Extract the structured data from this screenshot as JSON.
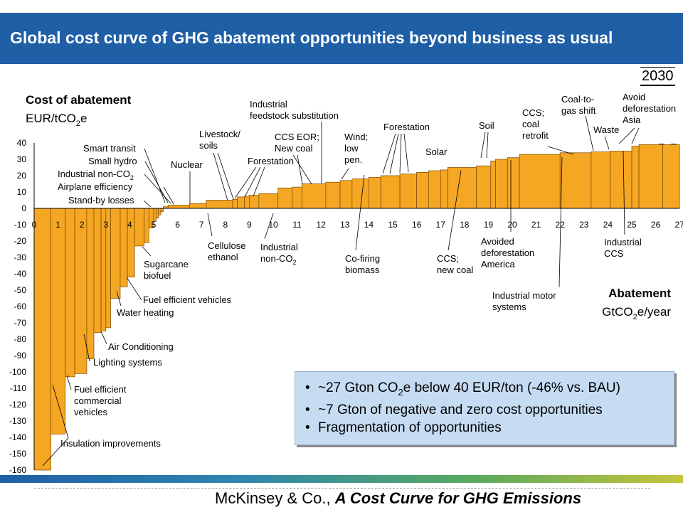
{
  "title": "Global cost curve of GHG abatement opportunities beyond business as usual",
  "year": "2030",
  "footer": {
    "prefix": "McKinsey & Co., ",
    "title": "A Cost Curve for GHG Emissions"
  },
  "bullets": [
    {
      "pre": "~27 Gton CO",
      "sub": "2",
      "post": "e below 40 EUR/ton (-46% vs. BAU)"
    },
    {
      "pre": "~7 Gton of negative and zero cost opportunities",
      "sub": "",
      "post": ""
    },
    {
      "pre": "Fragmentation of opportunities",
      "sub": "",
      "post": ""
    }
  ],
  "colors": {
    "accent": "#1f5fa6",
    "bar": "#f5a623",
    "bullet_box": "#c6dcf3"
  },
  "chart_data": {
    "type": "bar",
    "variant": "marginal-cost-curve",
    "ylabel": {
      "line1": "Cost of abatement",
      "line2_pre": "EUR/tCO",
      "line2_sub": "2",
      "line2_post": "e"
    },
    "xlabel": {
      "line1": "Abatement",
      "line2_pre": "GtCO",
      "line2_sub": "2",
      "line2_post": "e/year"
    },
    "ylim": [
      -160,
      40
    ],
    "xlim": [
      0,
      27
    ],
    "yticks": [
      40,
      30,
      20,
      10,
      0,
      -10,
      -20,
      -30,
      -40,
      -50,
      -60,
      -70,
      -80,
      -90,
      -100,
      -110,
      -120,
      -130,
      -140,
      -150,
      -160
    ],
    "xticks": [
      0,
      1,
      2,
      3,
      4,
      5,
      6,
      7,
      8,
      9,
      10,
      11,
      12,
      13,
      14,
      15,
      16,
      17,
      18,
      19,
      20,
      21,
      22,
      23,
      24,
      25,
      26,
      27
    ],
    "grid": false,
    "segments": [
      {
        "x0": 0.0,
        "x1": 0.7,
        "y": -160
      },
      {
        "x0": 0.7,
        "x1": 1.3,
        "y": -138
      },
      {
        "x0": 1.3,
        "x1": 1.7,
        "y": -103
      },
      {
        "x0": 1.7,
        "x1": 2.2,
        "y": -101
      },
      {
        "x0": 2.2,
        "x1": 2.5,
        "y": -92
      },
      {
        "x0": 2.5,
        "x1": 2.8,
        "y": -76
      },
      {
        "x0": 2.8,
        "x1": 3.0,
        "y": -75
      },
      {
        "x0": 3.0,
        "x1": 3.2,
        "y": -73
      },
      {
        "x0": 3.2,
        "x1": 3.6,
        "y": -55
      },
      {
        "x0": 3.6,
        "x1": 3.9,
        "y": -48
      },
      {
        "x0": 3.9,
        "x1": 4.2,
        "y": -42
      },
      {
        "x0": 4.2,
        "x1": 4.6,
        "y": -23
      },
      {
        "x0": 4.6,
        "x1": 4.8,
        "y": -21
      },
      {
        "x0": 4.8,
        "x1": 5.0,
        "y": -12
      },
      {
        "x0": 5.0,
        "x1": 5.1,
        "y": -8
      },
      {
        "x0": 5.1,
        "x1": 5.2,
        "y": -6
      },
      {
        "x0": 5.2,
        "x1": 5.3,
        "y": -4
      },
      {
        "x0": 5.3,
        "x1": 5.4,
        "y": -2
      },
      {
        "x0": 5.4,
        "x1": 5.6,
        "y": 1
      },
      {
        "x0": 5.6,
        "x1": 6.5,
        "y": 2
      },
      {
        "x0": 6.5,
        "x1": 7.2,
        "y": 3
      },
      {
        "x0": 7.2,
        "x1": 8.3,
        "y": 5
      },
      {
        "x0": 8.3,
        "x1": 8.5,
        "y": 5.5
      },
      {
        "x0": 8.5,
        "x1": 8.8,
        "y": 7
      },
      {
        "x0": 8.8,
        "x1": 9.0,
        "y": 7.5
      },
      {
        "x0": 9.0,
        "x1": 9.4,
        "y": 8
      },
      {
        "x0": 9.4,
        "x1": 10.2,
        "y": 9
      },
      {
        "x0": 10.2,
        "x1": 10.8,
        "y": 12.5
      },
      {
        "x0": 10.8,
        "x1": 11.2,
        "y": 13
      },
      {
        "x0": 11.2,
        "x1": 12.2,
        "y": 15
      },
      {
        "x0": 12.2,
        "x1": 12.8,
        "y": 16
      },
      {
        "x0": 12.8,
        "x1": 13.3,
        "y": 17
      },
      {
        "x0": 13.3,
        "x1": 14.0,
        "y": 18
      },
      {
        "x0": 14.0,
        "x1": 14.5,
        "y": 19
      },
      {
        "x0": 14.5,
        "x1": 15.3,
        "y": 20
      },
      {
        "x0": 15.3,
        "x1": 16.0,
        "y": 21
      },
      {
        "x0": 16.0,
        "x1": 16.5,
        "y": 22
      },
      {
        "x0": 16.5,
        "x1": 17.0,
        "y": 23
      },
      {
        "x0": 17.0,
        "x1": 17.3,
        "y": 23.5
      },
      {
        "x0": 17.3,
        "x1": 18.5,
        "y": 25
      },
      {
        "x0": 18.5,
        "x1": 19.1,
        "y": 26
      },
      {
        "x0": 19.1,
        "x1": 19.3,
        "y": 29
      },
      {
        "x0": 19.3,
        "x1": 19.8,
        "y": 30
      },
      {
        "x0": 19.8,
        "x1": 20.3,
        "y": 31
      },
      {
        "x0": 20.3,
        "x1": 22.0,
        "y": 33
      },
      {
        "x0": 22.0,
        "x1": 23.3,
        "y": 34
      },
      {
        "x0": 23.3,
        "x1": 24.1,
        "y": 34.5
      },
      {
        "x0": 24.1,
        "x1": 25.0,
        "y": 35
      },
      {
        "x0": 25.0,
        "x1": 25.3,
        "y": 38
      },
      {
        "x0": 25.3,
        "x1": 26.3,
        "y": 39
      },
      {
        "x0": 26.3,
        "x1": 27.0,
        "y": 39
      }
    ],
    "annotations": [
      {
        "id": "smart-transit",
        "text": "Smart transit",
        "lines": [
          {
            "t": "Smart transit"
          }
        ]
      },
      {
        "id": "small-hydro",
        "text": "Small hydro",
        "lines": [
          {
            "t": "Small hydro"
          }
        ]
      },
      {
        "id": "industrial-non-co2-top",
        "text": "Industrial non-CO2",
        "lines": [
          {
            "t": "Industrial non-CO",
            "sub": "2"
          }
        ]
      },
      {
        "id": "airplane-efficiency",
        "text": "Airplane efficiency",
        "lines": [
          {
            "t": "Airplane efficiency"
          }
        ]
      },
      {
        "id": "stand-by-losses",
        "text": "Stand-by losses",
        "lines": [
          {
            "t": "Stand-by losses"
          }
        ]
      },
      {
        "id": "nuclear",
        "text": "Nuclear",
        "lines": [
          {
            "t": "Nuclear"
          }
        ]
      },
      {
        "id": "livestock-soils",
        "text": "Livestock/ soils",
        "lines": [
          {
            "t": "Livestock/"
          },
          {
            "t": "soils"
          }
        ]
      },
      {
        "id": "forestation-left",
        "text": "Forestation",
        "lines": [
          {
            "t": "Forestation"
          }
        ]
      },
      {
        "id": "industrial-feedstock",
        "text": "Industrial feedstock substitution",
        "lines": [
          {
            "t": "Industrial"
          },
          {
            "t": "feedstock substitution"
          }
        ]
      },
      {
        "id": "ccs-eor",
        "text": "CCS EOR; New coal",
        "lines": [
          {
            "t": "CCS EOR;"
          },
          {
            "t": "New coal"
          }
        ]
      },
      {
        "id": "wind-low-pen",
        "text": "Wind; low pen.",
        "lines": [
          {
            "t": "Wind;"
          },
          {
            "t": "low"
          },
          {
            "t": "pen."
          }
        ]
      },
      {
        "id": "forestation-right",
        "text": "Forestation",
        "lines": [
          {
            "t": "Forestation"
          }
        ]
      },
      {
        "id": "solar",
        "text": "Solar",
        "lines": [
          {
            "t": "Solar"
          }
        ]
      },
      {
        "id": "soil",
        "text": "Soil",
        "lines": [
          {
            "t": "Soil"
          }
        ]
      },
      {
        "id": "ccs-coal-retrofit",
        "text": "CCS; coal retrofit",
        "lines": [
          {
            "t": "CCS;"
          },
          {
            "t": "coal"
          },
          {
            "t": "retrofit"
          }
        ]
      },
      {
        "id": "coal-to-gas",
        "text": "Coal-to- gas shift",
        "lines": [
          {
            "t": "Coal-to-"
          },
          {
            "t": "gas shift"
          }
        ]
      },
      {
        "id": "waste",
        "text": "Waste",
        "lines": [
          {
            "t": "Waste"
          }
        ]
      },
      {
        "id": "avoid-deforestation-asia",
        "text": "Avoid deforestation Asia",
        "lines": [
          {
            "t": "Avoid"
          },
          {
            "t": "deforestation"
          },
          {
            "t": "Asia"
          }
        ]
      },
      {
        "id": "sugarcane-biofuel",
        "text": "Sugarcane biofuel",
        "lines": [
          {
            "t": "Sugarcane"
          },
          {
            "t": "biofuel"
          }
        ]
      },
      {
        "id": "fuel-efficient-vehicles",
        "text": "Fuel efficient vehicles",
        "lines": [
          {
            "t": "Fuel efficient vehicles"
          }
        ]
      },
      {
        "id": "water-heating",
        "text": "Water heating",
        "lines": [
          {
            "t": "Water heating"
          }
        ]
      },
      {
        "id": "air-conditioning",
        "text": "Air Conditioning",
        "lines": [
          {
            "t": "Air Conditioning"
          }
        ]
      },
      {
        "id": "lighting-systems",
        "text": "Lighting systems",
        "lines": [
          {
            "t": "Lighting systems"
          }
        ]
      },
      {
        "id": "fuel-efficient-commercial",
        "text": "Fuel efficient commercial vehicles",
        "lines": [
          {
            "t": "Fuel efficient"
          },
          {
            "t": "commercial"
          },
          {
            "t": "vehicles"
          }
        ]
      },
      {
        "id": "insulation-improvements",
        "text": "Insulation improvements",
        "lines": [
          {
            "t": "Insulation improvements"
          }
        ]
      },
      {
        "id": "cellulose-ethanol",
        "text": "Cellulose ethanol",
        "lines": [
          {
            "t": "Cellulose"
          },
          {
            "t": "ethanol"
          }
        ]
      },
      {
        "id": "industrial-non-co2-bottom",
        "text": "Industrial non-CO2",
        "lines": [
          {
            "t": "Industrial"
          },
          {
            "t": "non-CO",
            "sub": "2"
          }
        ]
      },
      {
        "id": "co-firing-biomass",
        "text": "Co-firing biomass",
        "lines": [
          {
            "t": "Co-firing"
          },
          {
            "t": "biomass"
          }
        ]
      },
      {
        "id": "ccs-new-coal",
        "text": "CCS; new coal",
        "lines": [
          {
            "t": "CCS;"
          },
          {
            "t": "new coal"
          }
        ]
      },
      {
        "id": "avoided-deforestation-america",
        "text": "Avoided deforestation America",
        "lines": [
          {
            "t": "Avoided"
          },
          {
            "t": "deforestation"
          },
          {
            "t": "America"
          }
        ]
      },
      {
        "id": "industrial-motor-systems",
        "text": "Industrial motor systems",
        "lines": [
          {
            "t": "Industrial motor"
          },
          {
            "t": "systems"
          }
        ]
      },
      {
        "id": "industrial-ccs",
        "text": "Industrial CCS",
        "lines": [
          {
            "t": "Industrial"
          },
          {
            "t": "CCS"
          }
        ]
      }
    ]
  }
}
